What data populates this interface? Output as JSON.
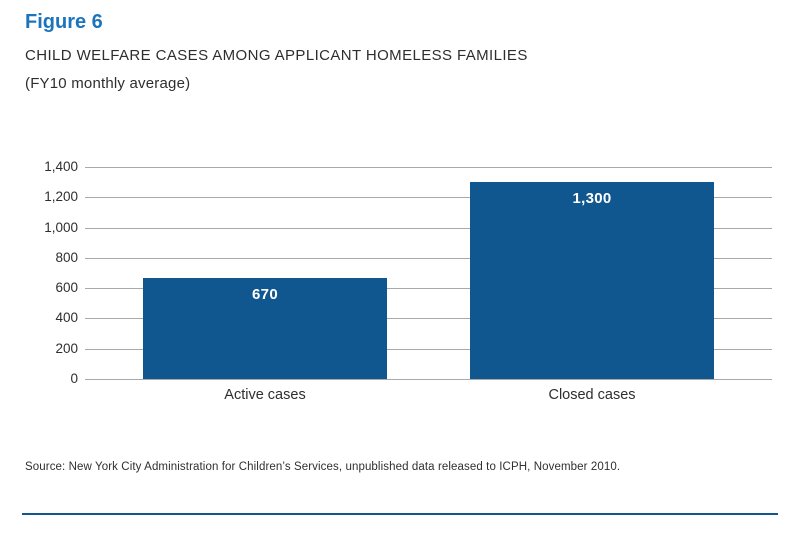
{
  "figure": {
    "label": "Figure 6",
    "title": "CHILD WELFARE CASES AMONG APPLICANT HOMELESS FAMILIES",
    "subtitle": "(FY10 monthly average)"
  },
  "chart_data": {
    "type": "bar",
    "categories": [
      "Active cases",
      "Closed cases"
    ],
    "values": [
      670,
      1300
    ],
    "value_labels": [
      "670",
      "1,300"
    ],
    "title": "CHILD WELFARE CASES AMONG APPLICANT HOMELESS FAMILIES (FY10 monthly average)",
    "xlabel": "",
    "ylabel": "",
    "ylim": [
      0,
      1400
    ],
    "y_tick_step": 200,
    "y_tick_labels": [
      "1,400",
      "1,200",
      "1,000",
      "800",
      "600",
      "400",
      "200",
      "0"
    ],
    "grid": true,
    "legend": "none",
    "bar_color": "#11578f",
    "value_label_color": "#ffffff",
    "gridline_color": "#a7a9ac"
  },
  "source": "Source: New York City Administration for Children’s Services, unpublished data released to ICPH, November 2010.",
  "colors": {
    "heading_blue": "#1c75bc",
    "bar_blue": "#11578f",
    "gridline_gray": "#a7a9ac",
    "text_dark": "#2e2e2e"
  }
}
